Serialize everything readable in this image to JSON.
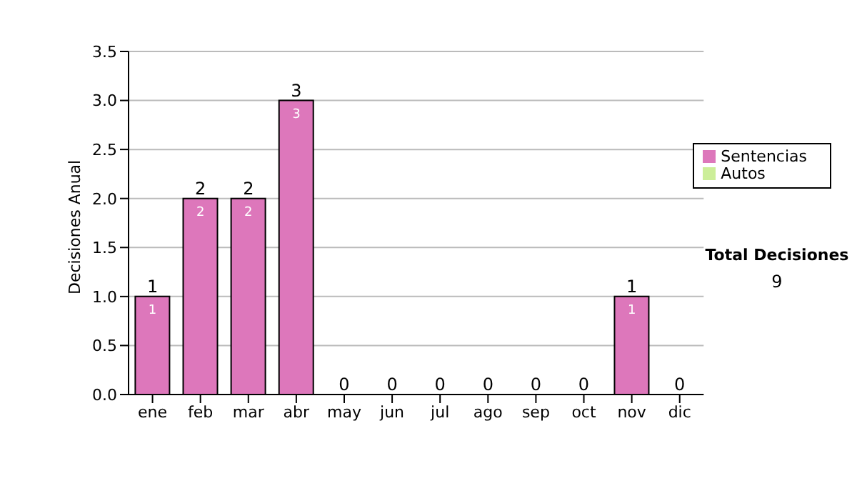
{
  "chart_data": {
    "type": "bar",
    "ylabel": "Decisiones Anual",
    "categories": [
      "ene",
      "feb",
      "mar",
      "abr",
      "may",
      "jun",
      "jul",
      "ago",
      "sep",
      "oct",
      "nov",
      "dic"
    ],
    "stacked": true,
    "series": [
      {
        "name": "Sentencias",
        "color": "#dd77bb",
        "values": [
          1,
          2,
          2,
          3,
          0,
          0,
          0,
          0,
          0,
          0,
          1,
          0
        ],
        "value_labels": [
          "1",
          "2",
          "2",
          "3",
          null,
          null,
          null,
          null,
          null,
          null,
          "1",
          null
        ]
      },
      {
        "name": "Autos",
        "color": "#ccee99",
        "values": [
          0,
          0,
          0,
          0,
          0,
          0,
          0,
          0,
          0,
          0,
          0,
          0
        ]
      }
    ],
    "totals": [
      "1",
      "2",
      "2",
      "3",
      "0",
      "0",
      "0",
      "0",
      "0",
      "0",
      "1",
      "0"
    ],
    "ylim": [
      0,
      3.5
    ],
    "yticks": [
      {
        "value": 0,
        "label": "0.0"
      },
      {
        "value": 0.5,
        "label": "0.5"
      },
      {
        "value": 1,
        "label": "1.0"
      },
      {
        "value": 1.5,
        "label": "1.5"
      },
      {
        "value": 2,
        "label": "2.0"
      },
      {
        "value": 2.5,
        "label": "2.5"
      },
      {
        "value": 3,
        "label": "3.0"
      },
      {
        "value": 3.5,
        "label": "3.5"
      }
    ],
    "grid": "y",
    "legend": "right",
    "annotations": [
      "Total Decisiones",
      "9"
    ]
  }
}
